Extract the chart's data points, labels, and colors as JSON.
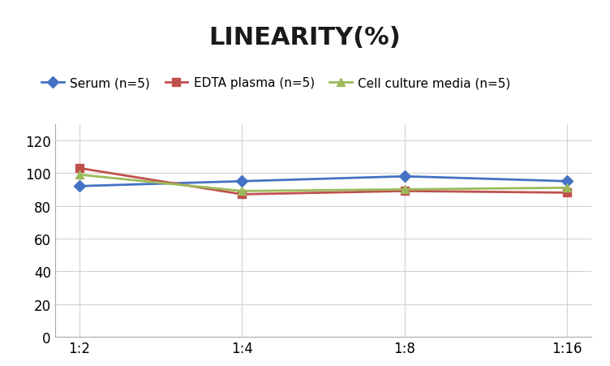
{
  "title": "LINEARITY(%)",
  "x_labels": [
    "1:2",
    "1:4",
    "1:8",
    "1:16"
  ],
  "series": [
    {
      "label": "Serum (n=5)",
      "values": [
        92,
        95,
        98,
        95
      ],
      "color": "#4472C4",
      "marker": "D",
      "markersize": 7,
      "linewidth": 2
    },
    {
      "label": "EDTA plasma (n=5)",
      "values": [
        103,
        87,
        89,
        88
      ],
      "color": "#C0504D",
      "marker": "s",
      "markersize": 7,
      "linewidth": 2
    },
    {
      "label": "Cell culture media (n=5)",
      "values": [
        99,
        89,
        90,
        91
      ],
      "color": "#9BBB59",
      "marker": "^",
      "markersize": 7,
      "linewidth": 2
    }
  ],
  "ylim": [
    0,
    130
  ],
  "yticks": [
    0,
    20,
    40,
    60,
    80,
    100,
    120
  ],
  "background_color": "#FFFFFF",
  "grid_color": "#D3D3D3",
  "title_fontsize": 22,
  "legend_fontsize": 11,
  "tick_fontsize": 12
}
